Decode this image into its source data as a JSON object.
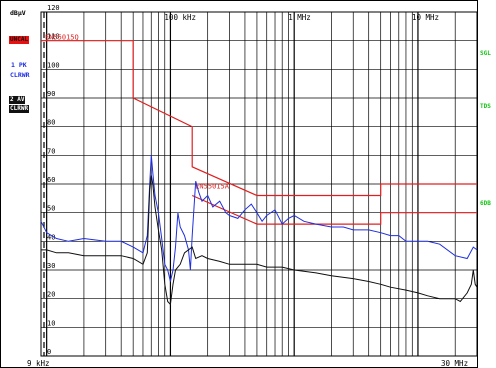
{
  "left_panel": {
    "unit": "dBµV",
    "uncal": "UNCAL",
    "trace1_label": "1 PK",
    "trace1_mode": "CLRWR",
    "trace2_label": "2 AV",
    "trace2_mode": "CLRWR"
  },
  "right_panel": {
    "sgl": "SGL",
    "tdf": "TDS",
    "sixdb": "6DB"
  },
  "chart_data": {
    "type": "line",
    "title": "",
    "x_scale": "log",
    "x_range_hz": [
      9000,
      30000000
    ],
    "y_range_dbuv": [
      0,
      120
    ],
    "x_start_label": "9 kHz",
    "x_stop_label": "30 MHz",
    "x_ticks": [
      {
        "label": "100 kHz",
        "hz": 100000
      },
      {
        "label": "1 MHz",
        "hz": 1000000
      },
      {
        "label": "10 MHz",
        "hz": 10000000
      }
    ],
    "y_ticks": [
      {
        "label": "120",
        "v": 120
      },
      {
        "label": "110",
        "v": 110
      },
      {
        "label": "100",
        "v": 100
      },
      {
        "label": "90",
        "v": 90
      },
      {
        "label": "80",
        "v": 80
      },
      {
        "label": "70",
        "v": 70
      },
      {
        "label": "60",
        "v": 60
      },
      {
        "label": "50",
        "v": 50
      },
      {
        "label": "40",
        "v": 40
      },
      {
        "label": "30",
        "v": 30
      },
      {
        "label": "20",
        "v": 20
      },
      {
        "label": "10",
        "v": 10
      },
      {
        "label": "0",
        "v": 0
      }
    ],
    "limit_lines": [
      {
        "name": "EN55015Q",
        "color": "#e02020",
        "points": [
          [
            9000,
            110
          ],
          [
            50000,
            110
          ],
          [
            50000,
            90
          ],
          [
            150000,
            80
          ],
          [
            150000,
            66
          ],
          [
            500000,
            56
          ],
          [
            5000000,
            56
          ],
          [
            5000000,
            60
          ],
          [
            30000000,
            60
          ]
        ]
      },
      {
        "name": "EN55015A",
        "color": "#e02020",
        "points": [
          [
            150000,
            56
          ],
          [
            500000,
            46
          ],
          [
            5000000,
            46
          ],
          [
            5000000,
            50
          ],
          [
            30000000,
            50
          ]
        ]
      }
    ],
    "series": [
      {
        "name": "1 PK",
        "color": "#1f2fe0",
        "points": [
          [
            9000,
            47
          ],
          [
            10000,
            43
          ],
          [
            12000,
            41
          ],
          [
            15000,
            40
          ],
          [
            20000,
            41
          ],
          [
            30000,
            40
          ],
          [
            40000,
            40
          ],
          [
            50000,
            38
          ],
          [
            60000,
            36
          ],
          [
            65000,
            42
          ],
          [
            68000,
            60
          ],
          [
            70000,
            70
          ],
          [
            72000,
            64
          ],
          [
            75000,
            56
          ],
          [
            80000,
            50
          ],
          [
            85000,
            41
          ],
          [
            90000,
            32
          ],
          [
            95000,
            30
          ],
          [
            100000,
            26
          ],
          [
            105000,
            30
          ],
          [
            110000,
            38
          ],
          [
            115000,
            50
          ],
          [
            120000,
            45
          ],
          [
            130000,
            42
          ],
          [
            140000,
            37
          ],
          [
            145000,
            30
          ],
          [
            150000,
            42
          ],
          [
            160000,
            61
          ],
          [
            170000,
            57
          ],
          [
            180000,
            54
          ],
          [
            200000,
            56
          ],
          [
            220000,
            52
          ],
          [
            250000,
            54
          ],
          [
            280000,
            50
          ],
          [
            300000,
            49
          ],
          [
            350000,
            48
          ],
          [
            400000,
            51
          ],
          [
            450000,
            53
          ],
          [
            500000,
            50
          ],
          [
            550000,
            47
          ],
          [
            600000,
            49
          ],
          [
            700000,
            51
          ],
          [
            800000,
            46
          ],
          [
            900000,
            48
          ],
          [
            1000000,
            49
          ],
          [
            1200000,
            47
          ],
          [
            1500000,
            46
          ],
          [
            2000000,
            45
          ],
          [
            2500000,
            45
          ],
          [
            3000000,
            44
          ],
          [
            4000000,
            44
          ],
          [
            5000000,
            43
          ],
          [
            6000000,
            42
          ],
          [
            7000000,
            42
          ],
          [
            8000000,
            40
          ],
          [
            10000000,
            40
          ],
          [
            12000000,
            40
          ],
          [
            15000000,
            39
          ],
          [
            20000000,
            35
          ],
          [
            25000000,
            34
          ],
          [
            28000000,
            38
          ],
          [
            30000000,
            37
          ]
        ]
      },
      {
        "name": "2 AV",
        "color": "#101010",
        "points": [
          [
            9000,
            37
          ],
          [
            10000,
            37
          ],
          [
            12000,
            36
          ],
          [
            15000,
            36
          ],
          [
            20000,
            35
          ],
          [
            30000,
            35
          ],
          [
            40000,
            35
          ],
          [
            50000,
            34
          ],
          [
            60000,
            32
          ],
          [
            65000,
            36
          ],
          [
            68000,
            58
          ],
          [
            70000,
            63
          ],
          [
            72000,
            60
          ],
          [
            75000,
            52
          ],
          [
            80000,
            44
          ],
          [
            85000,
            37
          ],
          [
            90000,
            25
          ],
          [
            95000,
            19
          ],
          [
            100000,
            18
          ],
          [
            105000,
            25
          ],
          [
            110000,
            30
          ],
          [
            120000,
            32
          ],
          [
            130000,
            36
          ],
          [
            150000,
            38
          ],
          [
            160000,
            34
          ],
          [
            180000,
            35
          ],
          [
            200000,
            34
          ],
          [
            250000,
            33
          ],
          [
            300000,
            32
          ],
          [
            400000,
            32
          ],
          [
            500000,
            32
          ],
          [
            600000,
            31
          ],
          [
            800000,
            31
          ],
          [
            1000000,
            30
          ],
          [
            1500000,
            29
          ],
          [
            2000000,
            28
          ],
          [
            3000000,
            27
          ],
          [
            4000000,
            26
          ],
          [
            5000000,
            25
          ],
          [
            6000000,
            24
          ],
          [
            8000000,
            23
          ],
          [
            10000000,
            22
          ],
          [
            12000000,
            21
          ],
          [
            15000000,
            20
          ],
          [
            18000000,
            20
          ],
          [
            20000000,
            20
          ],
          [
            22000000,
            19
          ],
          [
            25000000,
            22
          ],
          [
            27000000,
            25
          ],
          [
            28000000,
            30
          ],
          [
            29000000,
            25
          ],
          [
            30000000,
            24
          ]
        ]
      }
    ],
    "grid": true
  }
}
